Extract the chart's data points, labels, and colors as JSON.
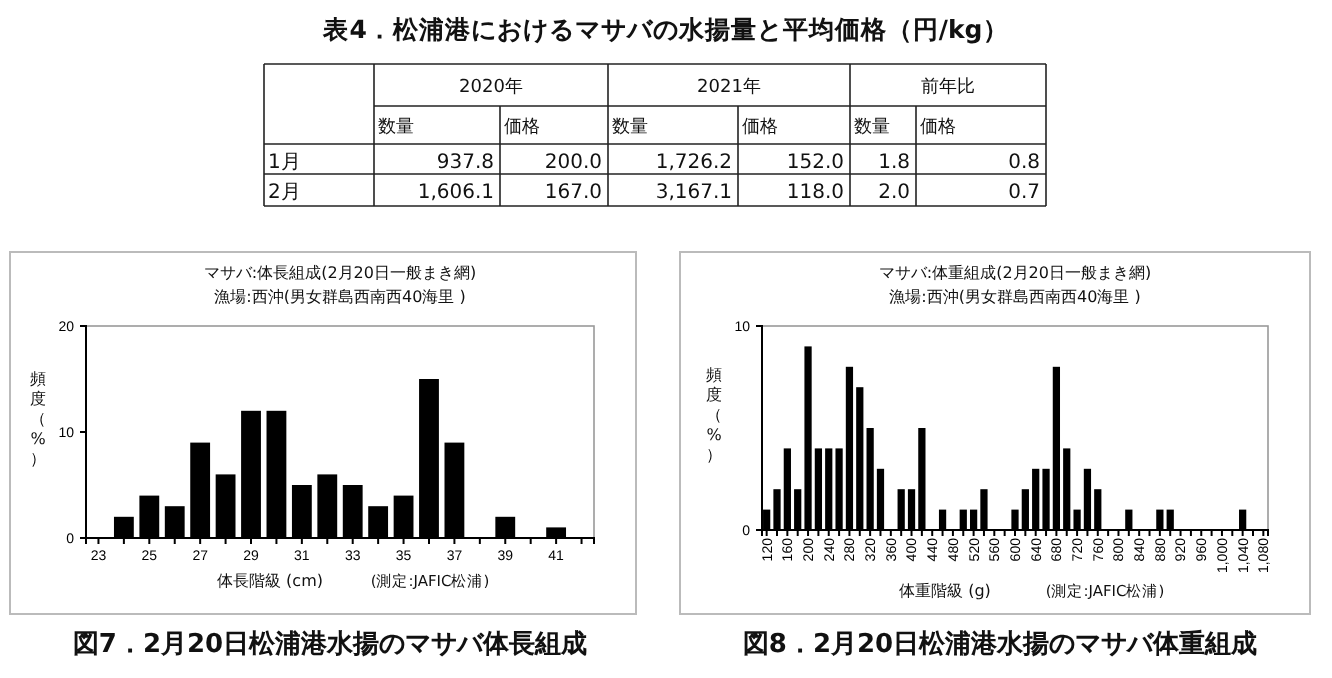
{
  "chart_data": [
    {
      "type": "other",
      "title": "表4．松浦港におけるマサバの水揚量と平均価格（円/kg）",
      "annotations": [
        "2020年",
        "2021年",
        "前年比",
        "数量",
        "価格",
        "数量",
        "価格",
        "数量",
        "価格",
        "1月",
        "937.8",
        "200.0",
        "1,726.2",
        "152.0",
        "1.8",
        "0.8",
        "2月",
        "1,606.1",
        "167.0",
        "3,167.1",
        "118.0",
        "2.0",
        "0.7"
      ]
    },
    {
      "type": "bar",
      "title": "マサバ:体長組成(2月20日一般まき網)",
      "subtitle": "漁場:西沖(男女群島西南西40海里 )",
      "xlabel": "体長階級 (cm)",
      "ylabel": "頻度（%）",
      "annotations": [
        "(測定:JAFIC松浦)",
        "図7．2月20日松浦港水揚のマサバ体長組成"
      ],
      "categories": [
        "23",
        null,
        "25",
        null,
        "27",
        null,
        "29",
        null,
        "31",
        null,
        "33",
        null,
        "35",
        null,
        "37",
        null,
        "39",
        null,
        "41",
        null
      ],
      "values": [
        0,
        2,
        4,
        3,
        9,
        6,
        12,
        12,
        5,
        6,
        5,
        3,
        4,
        15,
        9,
        0,
        2,
        0,
        1,
        0
      ],
      "color": "#000000",
      "ylim": [
        0,
        20
      ],
      "yticks": [
        0,
        10,
        20
      ]
    },
    {
      "type": "bar",
      "title": "マサバ:体重組成(2月20日一般まき網)",
      "subtitle": "漁場:西沖(男女群島西南西40海里 )",
      "xlabel": "体重階級 (g)",
      "ylabel": "頻度（%）",
      "annotations": [
        "(測定:JAFIC松浦)",
        "図8．2月20日松浦港水揚のマサバ体重組成"
      ],
      "categories": [
        "120",
        null,
        "160",
        null,
        "200",
        null,
        "240",
        null,
        "280",
        null,
        "320",
        null,
        "360",
        null,
        "400",
        null,
        "440",
        null,
        "480",
        null,
        "520",
        null,
        "560",
        null,
        "600",
        null,
        "640",
        null,
        "680",
        null,
        "720",
        null,
        "760",
        null,
        "800",
        null,
        "840",
        null,
        "880",
        null,
        "920",
        null,
        "960",
        null,
        "1,000",
        null,
        "1,040",
        null,
        "1,080"
      ],
      "values": [
        1,
        2,
        4,
        2,
        9,
        4,
        4,
        4,
        8,
        7,
        5,
        3,
        0,
        2,
        2,
        5,
        0,
        1,
        0,
        1,
        1,
        2,
        0,
        0,
        1,
        2,
        3,
        3,
        8,
        4,
        1,
        3,
        2,
        0,
        0,
        1,
        0,
        0,
        1,
        1,
        0,
        0,
        0,
        0,
        0,
        0,
        1,
        0,
        0
      ],
      "color": "#000000",
      "ylim": [
        0,
        10
      ],
      "yticks": [
        0,
        10
      ]
    }
  ]
}
